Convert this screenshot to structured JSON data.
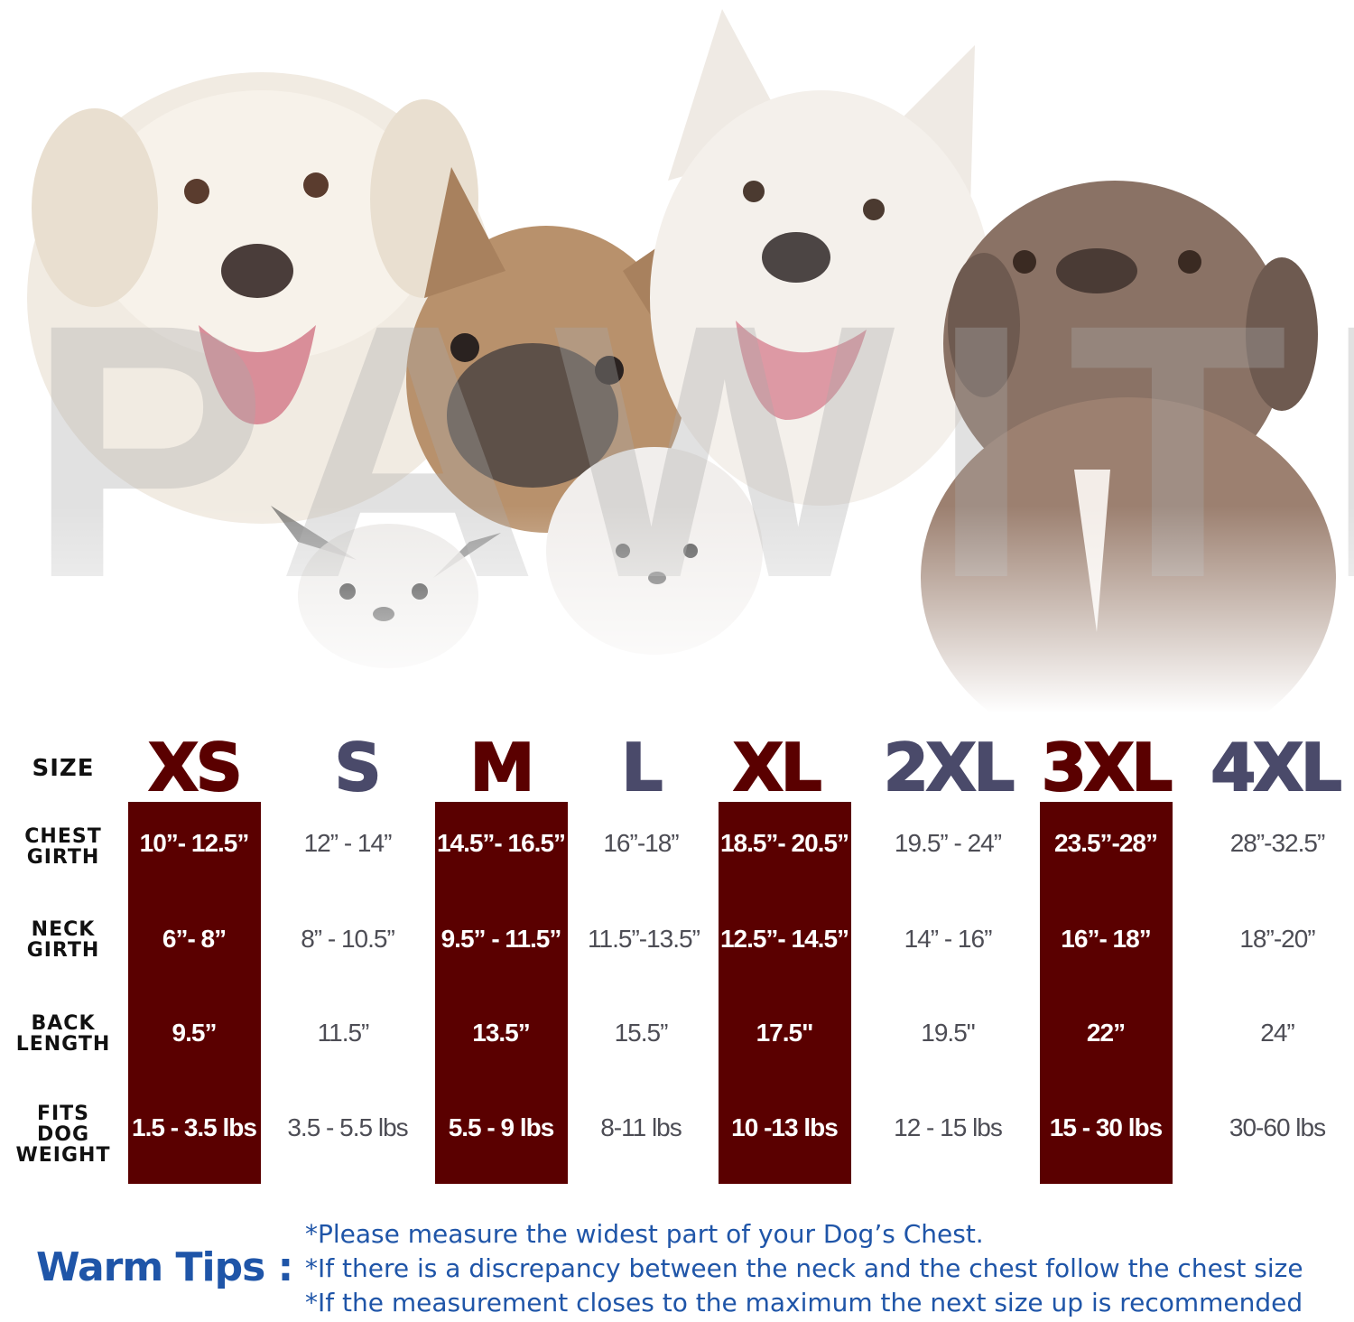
{
  "watermark": "PAWITE",
  "row_labels": {
    "size": "SIZE",
    "chest": [
      "CHEST",
      "GIRTH"
    ],
    "neck": [
      "NECK",
      "GIRTH"
    ],
    "back": [
      "BACK",
      "LENGTH"
    ],
    "weight": [
      "FITS",
      "DOG",
      "WEIGHT"
    ]
  },
  "sizes": [
    {
      "label": "XS",
      "chest": "10”- 12.5”",
      "neck": "6”- 8”",
      "back": "9.5”",
      "weight": "1.5 - 3.5 lbs"
    },
    {
      "label": "S",
      "chest": "12” - 14”",
      "neck": "8” - 10.5”",
      "back": "11.5”",
      "weight": "3.5 - 5.5 lbs"
    },
    {
      "label": "M",
      "chest": "14.5”- 16.5”",
      "neck": "9.5” - 11.5”",
      "back": "13.5”",
      "weight": "5.5 - 9 lbs"
    },
    {
      "label": "L",
      "chest": "16”-18”",
      "neck": "11.5”-13.5”",
      "back": "15.5”",
      "weight": "8-11 lbs"
    },
    {
      "label": "XL",
      "chest": "18.5”- 20.5”",
      "neck": "12.5”- 14.5”",
      "back": "17.5\"",
      "weight": "10 -13 lbs"
    },
    {
      "label": "2XL",
      "chest": "19.5” - 24”",
      "neck": "14” - 16”",
      "back": "19.5\"",
      "weight": "12 - 15 lbs"
    },
    {
      "label": "3XL",
      "chest": "23.5”-28”",
      "neck": "16”- 18”",
      "back": "22”",
      "weight": "15 - 30 lbs"
    },
    {
      "label": "4XL",
      "chest": "28”-32.5”",
      "neck": "18”-20”",
      "back": "24”",
      "weight": "30-60 lbs"
    }
  ],
  "colors": {
    "highlight_band": "#5a0000",
    "dark_size": "#5a0000",
    "gray_size": "#4a4a6a",
    "tips_blue": "#1f55a8"
  },
  "tips": {
    "title": "Warm Tips :",
    "lines": [
      "*Please measure the widest part of your Dog’s Chest.",
      "*If there is a discrepancy between the neck and the chest  follow the chest size",
      "*If the measurement closes to the maximum the next size up is recommended"
    ]
  }
}
